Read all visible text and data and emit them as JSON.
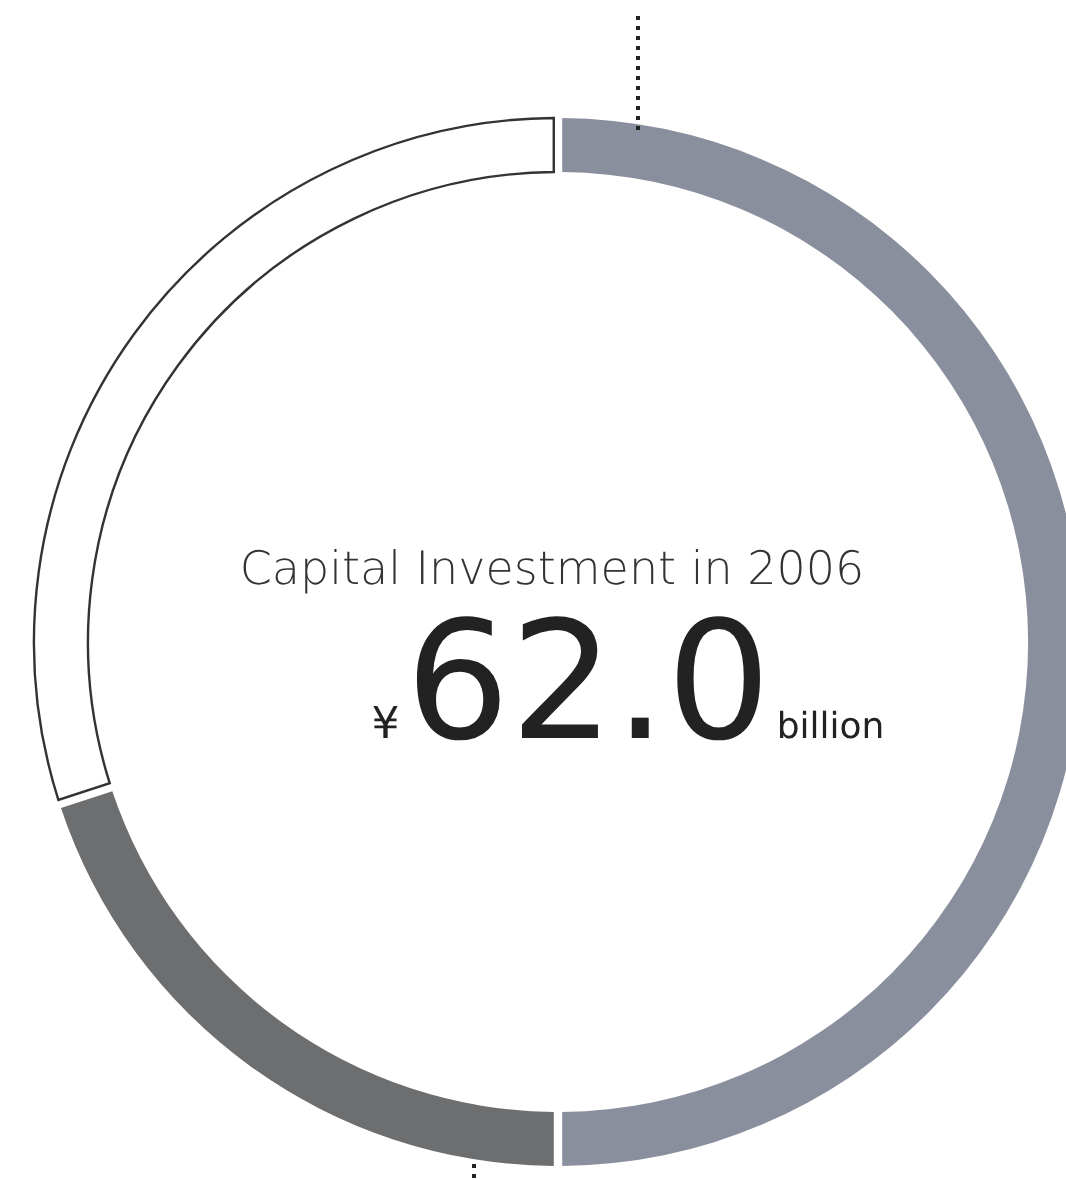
{
  "chart_data": {
    "type": "donut",
    "title": "Capital Investment in 2006",
    "categories": [
      null,
      null,
      null
    ],
    "values": [
      50,
      20,
      30
    ],
    "colors": [
      "#8a8f9e",
      "#6d6e70",
      "#ffffff"
    ],
    "annotations": [
      "¥",
      "62.0",
      "billion"
    ]
  }
}
